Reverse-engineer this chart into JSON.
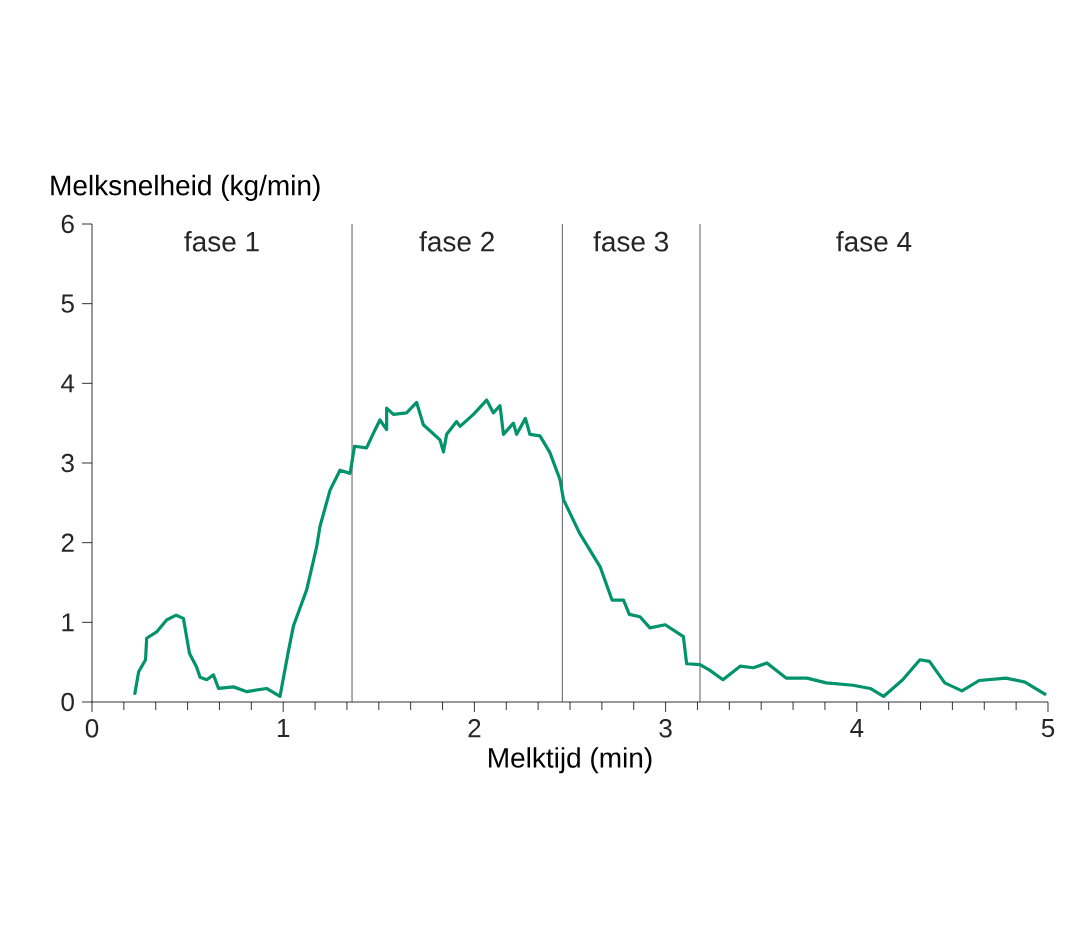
{
  "chart_data": {
    "type": "line",
    "xlabel": "Melktijd (min)",
    "ylabel": "Melksnelheid (kg/min)",
    "xlim": [
      0,
      5
    ],
    "xticks": [
      0,
      1,
      2,
      3,
      4,
      5
    ],
    "ylim": [
      0,
      6
    ],
    "yticks": [
      0,
      1,
      2,
      3,
      4,
      5,
      6
    ],
    "grid": false,
    "marker": "none",
    "line_style": "solid",
    "ref_lines": [
      {
        "axis": "x",
        "value": 1.36
      },
      {
        "axis": "x",
        "value": 2.46
      },
      {
        "axis": "x",
        "value": 3.18
      }
    ],
    "annotations": [
      "fase 1",
      "fase 2",
      "fase 3",
      "fase 4"
    ],
    "series": [
      {
        "color": "#00936c",
        "x": [
          0.223,
          0.244,
          0.28,
          0.286,
          0.338,
          0.39,
          0.44,
          0.478,
          0.51,
          0.547,
          0.565,
          0.6,
          0.635,
          0.662,
          0.74,
          0.81,
          0.913,
          0.983,
          1.025,
          1.053,
          1.123,
          1.175,
          1.192,
          1.245,
          1.297,
          1.35,
          1.373,
          1.436,
          1.471,
          1.506,
          1.541,
          1.541,
          1.576,
          1.645,
          1.698,
          1.733,
          1.82,
          1.838,
          1.855,
          1.907,
          1.925,
          1.995,
          2.064,
          2.099,
          2.134,
          2.152,
          2.204,
          2.221,
          2.267,
          2.29,
          2.343,
          2.395,
          2.448,
          2.466,
          2.55,
          2.657,
          2.72,
          2.78,
          2.81,
          2.866,
          2.918,
          2.998,
          3.093,
          3.11,
          3.18,
          3.23,
          3.3,
          3.39,
          3.46,
          3.53,
          3.63,
          3.74,
          3.84,
          3.98,
          4.07,
          4.14,
          4.24,
          4.33,
          4.38,
          4.46,
          4.55,
          4.64,
          4.78,
          4.88,
          4.99
        ],
        "values": [
          0.09,
          0.38,
          0.53,
          0.8,
          0.88,
          1.03,
          1.09,
          1.05,
          0.61,
          0.44,
          0.31,
          0.28,
          0.34,
          0.17,
          0.19,
          0.13,
          0.17,
          0.07,
          0.61,
          0.95,
          1.41,
          1.95,
          2.2,
          2.66,
          2.91,
          2.87,
          3.21,
          3.19,
          3.37,
          3.54,
          3.42,
          3.69,
          3.61,
          3.63,
          3.76,
          3.48,
          3.29,
          3.14,
          3.36,
          3.52,
          3.46,
          3.61,
          3.79,
          3.63,
          3.72,
          3.36,
          3.5,
          3.36,
          3.56,
          3.36,
          3.34,
          3.13,
          2.79,
          2.54,
          2.12,
          1.7,
          1.28,
          1.28,
          1.1,
          1.07,
          0.93,
          0.97,
          0.82,
          0.48,
          0.47,
          0.4,
          0.28,
          0.45,
          0.43,
          0.49,
          0.3,
          0.3,
          0.24,
          0.21,
          0.17,
          0.07,
          0.28,
          0.53,
          0.51,
          0.24,
          0.14,
          0.27,
          0.3,
          0.25,
          0.09
        ]
      }
    ]
  }
}
